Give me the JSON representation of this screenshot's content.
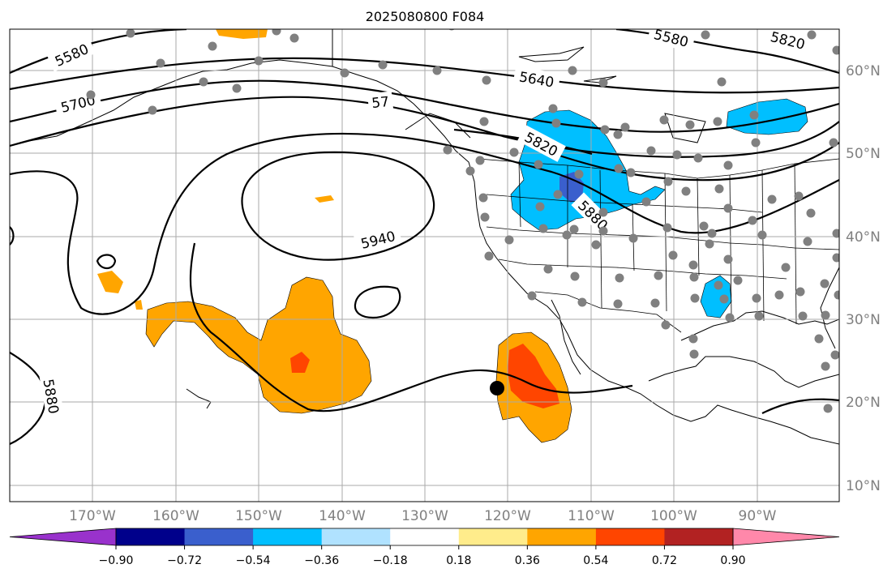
{
  "title": "2025080800 F084",
  "lon_labels": [
    "170°W",
    "160°W",
    "150°W",
    "140°W",
    "130°W",
    "120°W",
    "110°W",
    "100°W",
    "90°W"
  ],
  "lat_labels": [
    "60°N",
    "50°N",
    "40°N",
    "30°N",
    "20°N",
    "10°N"
  ],
  "contour_labels": [
    "5580",
    "5700",
    "5640",
    "5580",
    "5820",
    "5820",
    "5880",
    "5940",
    "5880",
    "57"
  ],
  "colorbar": {
    "colors": [
      "#9932cc",
      "#00008b",
      "#3a5fcd",
      "#00bfff",
      "#b0e2ff",
      "#ffffff",
      "#ffec8b",
      "#ffa500",
      "#ff4500",
      "#b22222",
      "#ff88aa"
    ],
    "ticks": [
      "−0.90",
      "−0.72",
      "−0.54",
      "−0.36",
      "−0.18",
      "0.18",
      "0.36",
      "0.54",
      "0.72",
      "0.90"
    ]
  },
  "colors": {
    "grid": "#aaaaaa",
    "land_line": "#000000",
    "station": "#808080",
    "marker": "#000000"
  }
}
